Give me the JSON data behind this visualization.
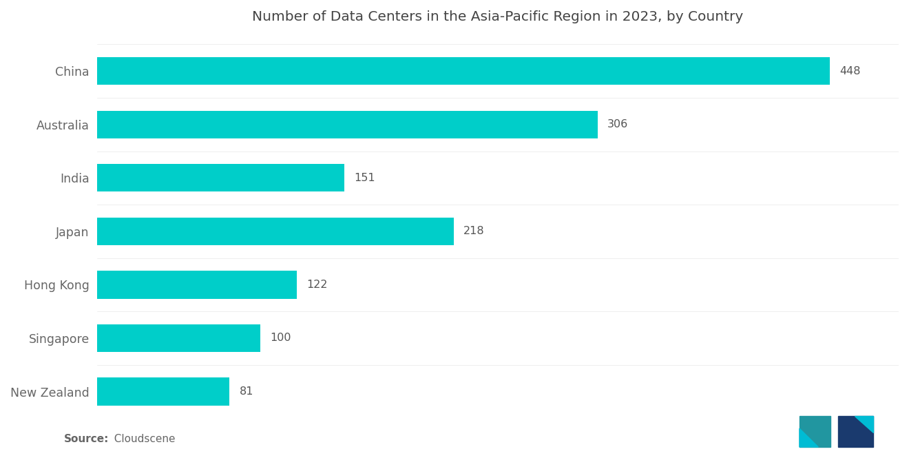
{
  "title": "Number of Data Centers in the Asia-Pacific Region in 2023, by Country",
  "categories": [
    "China",
    "Australia",
    "India",
    "Japan",
    "Hong Kong",
    "Singapore",
    "New Zealand"
  ],
  "values": [
    448,
    306,
    151,
    218,
    122,
    100,
    81
  ],
  "bar_color": "#00CEC9",
  "background_color": "#ffffff",
  "label_color": "#666666",
  "value_color": "#555555",
  "title_color": "#444444",
  "source_bold": "Source:",
  "source_rest": "  Cloudscene",
  "title_fontsize": 14.5,
  "label_fontsize": 12.5,
  "value_fontsize": 11.5,
  "source_fontsize": 11,
  "xlim": [
    0,
    490
  ],
  "logo_left_color": "#2196A0",
  "logo_right_color": "#1A3A6E",
  "logo_teal_color": "#00BCD4"
}
